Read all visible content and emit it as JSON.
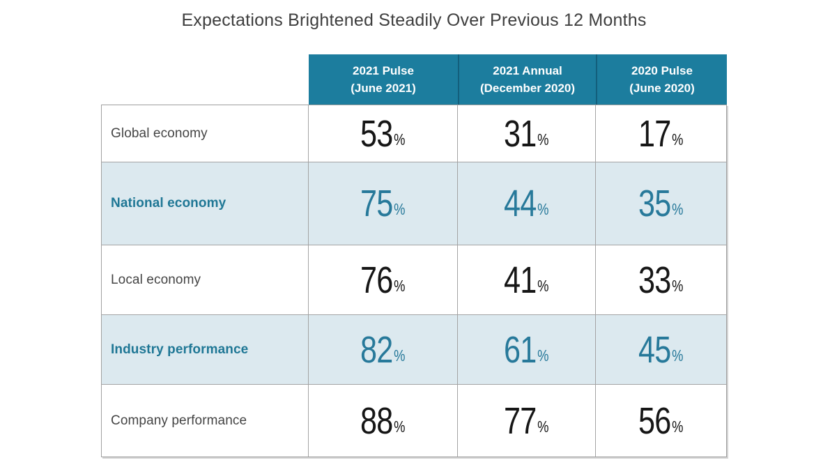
{
  "title": "Expectations Brightened Steadily Over Previous 12 Months",
  "table": {
    "headers": [
      {
        "line1": "2021 Pulse",
        "line2": "(June 2021)"
      },
      {
        "line1": "2021 Annual",
        "line2": "(December 2020)"
      },
      {
        "line1": "2020 Pulse",
        "line2": "(June 2020)"
      }
    ],
    "percent_sign": "%",
    "rows": [
      {
        "label": "Global economy",
        "values": [
          "53",
          "31",
          "17"
        ]
      },
      {
        "label": "National economy",
        "values": [
          "75",
          "44",
          "35"
        ]
      },
      {
        "label": "Local economy",
        "values": [
          "76",
          "41",
          "33"
        ]
      },
      {
        "label": "Industry performance",
        "values": [
          "82",
          "61",
          "45"
        ]
      },
      {
        "label": "Company performance",
        "values": [
          "88",
          "77",
          "56"
        ]
      }
    ]
  },
  "chart_data": {
    "type": "table",
    "title": "Expectations Brightened Steadily Over Previous 12 Months",
    "columns": [
      "2021 Pulse (June 2021)",
      "2021 Annual (December 2020)",
      "2020 Pulse (June 2020)"
    ],
    "categories": [
      "Global economy",
      "National economy",
      "Local economy",
      "Industry performance",
      "Company performance"
    ],
    "series": [
      {
        "name": "2021 Pulse (June 2021)",
        "values": [
          53,
          75,
          76,
          82,
          88
        ]
      },
      {
        "name": "2021 Annual (December 2020)",
        "values": [
          31,
          44,
          41,
          61,
          77
        ]
      },
      {
        "name": "2020 Pulse (June 2020)",
        "values": [
          17,
          35,
          33,
          45,
          56
        ]
      }
    ],
    "unit": "percent",
    "highlighted_rows": [
      "National economy",
      "Industry performance"
    ]
  },
  "colors": {
    "header_bg": "#1c7d9e",
    "header_separator": "#135f7c",
    "row_highlight_bg": "#dce9ef",
    "accent_text": "#27799a",
    "value_text": "#161616",
    "label_text": "#444444",
    "title_text": "#3e3e3e",
    "border": "#a3a3a3"
  }
}
